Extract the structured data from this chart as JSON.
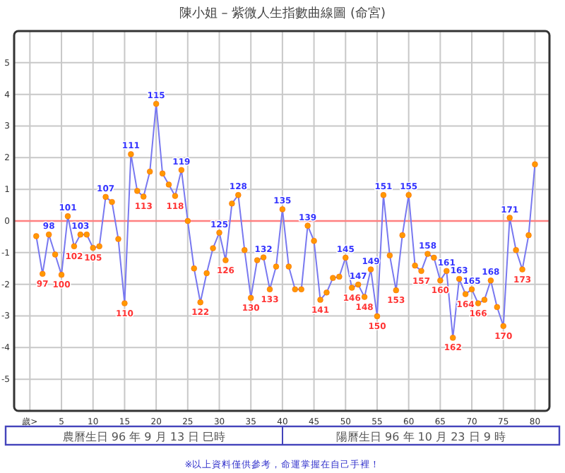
{
  "chart_data": {
    "type": "line",
    "title": "陳小姐 – 紫微人生指數曲線圖 (命宮)",
    "x": [
      1,
      2,
      3,
      4,
      5,
      6,
      7,
      8,
      9,
      10,
      11,
      12,
      13,
      14,
      15,
      16,
      17,
      18,
      19,
      20,
      21,
      22,
      23,
      24,
      25,
      26,
      27,
      28,
      29,
      30,
      31,
      32,
      33,
      34,
      35,
      36,
      37,
      38,
      39,
      40,
      41,
      42,
      43,
      44,
      45,
      46,
      47,
      48,
      49,
      50,
      51,
      52,
      53,
      54,
      55,
      56,
      57,
      58,
      59,
      60,
      61,
      62,
      63,
      64,
      65,
      66,
      67,
      68,
      69,
      70,
      71,
      72,
      73,
      74,
      75,
      76,
      77,
      78,
      79,
      80
    ],
    "series": [
      {
        "color": "#7878f0",
        "values": [
          -0.48,
          -1.67,
          -0.43,
          -1.06,
          -1.7,
          0.15,
          -0.8,
          -0.43,
          -0.43,
          -0.85,
          -0.8,
          0.76,
          0.6,
          -0.57,
          -2.6,
          2.11,
          0.95,
          0.77,
          1.56,
          3.7,
          1.5,
          1.15,
          0.79,
          1.61,
          0.0,
          -1.5,
          -2.57,
          -1.65,
          -0.86,
          -0.37,
          -1.24,
          0.55,
          0.82,
          -0.92,
          -2.43,
          -1.24,
          -1.15,
          -2.16,
          -1.44,
          0.37,
          -1.44,
          -2.16,
          -2.16,
          -0.15,
          -0.63,
          -2.49,
          -2.26,
          -1.8,
          -1.76,
          -1.16,
          -2.11,
          -2.01,
          -2.4,
          -1.53,
          -3.01,
          0.82,
          -1.09,
          -2.19,
          -0.45,
          0.82,
          -1.41,
          -1.58,
          -1.04,
          -1.16,
          -1.88,
          -1.58,
          -3.69,
          -1.83,
          -2.31,
          -2.16,
          -2.6,
          -2.49,
          -1.88,
          -2.72,
          -3.32,
          0.1,
          -0.92,
          -1.53,
          -0.45,
          1.79
        ]
      }
    ],
    "marker": "circle",
    "grid": true,
    "xlim": [
      -2.5,
      82.3
    ],
    "xticks": [
      {
        "value": 0,
        "label": "歲>"
      },
      5,
      10,
      15,
      20,
      25,
      30,
      35,
      40,
      45,
      50,
      55,
      60,
      65,
      70,
      75,
      80
    ],
    "ylim": [
      -6,
      6
    ],
    "yticks": [
      -5,
      -4,
      -3,
      -2,
      -1,
      0,
      1,
      2,
      3,
      4,
      5
    ],
    "ref_lines": [
      {
        "axis": "y",
        "value": 0,
        "color": "#ff8080"
      }
    ],
    "annotations": [
      "農曆生日 96 年 9 月 13 日 巳時",
      "陽曆生日 96 年 10 月 23 日 9 時",
      "※以上資料僅供參考，命運掌握在自己手裡！",
      {
        "text": "97",
        "x": 2,
        "y": -1.67
      },
      {
        "text": "98",
        "x": 3,
        "y": -0.43
      },
      {
        "text": "100",
        "x": 5,
        "y": -1.7
      },
      {
        "text": "101",
        "x": 6,
        "y": 0.15
      },
      {
        "text": "102",
        "x": 7,
        "y": -0.8
      },
      {
        "text": "103",
        "x": 8,
        "y": -0.43
      },
      {
        "text": "105",
        "x": 10,
        "y": -0.85
      },
      {
        "text": "107",
        "x": 12,
        "y": 0.76
      },
      {
        "text": "110",
        "x": 15,
        "y": -2.6
      },
      {
        "text": "111",
        "x": 16,
        "y": 2.11
      },
      {
        "text": "113",
        "x": 18,
        "y": 0.77
      },
      {
        "text": "115",
        "x": 20,
        "y": 3.7
      },
      {
        "text": "118",
        "x": 23,
        "y": 0.79
      },
      {
        "text": "119",
        "x": 24,
        "y": 1.61
      },
      {
        "text": "122",
        "x": 27,
        "y": -2.57
      },
      {
        "text": "125",
        "x": 30,
        "y": -0.37
      },
      {
        "text": "126",
        "x": 31,
        "y": -1.24
      },
      {
        "text": "128",
        "x": 33,
        "y": 0.82
      },
      {
        "text": "130",
        "x": 35,
        "y": -2.43
      },
      {
        "text": "132",
        "x": 37,
        "y": -1.15
      },
      {
        "text": "133",
        "x": 38,
        "y": -2.16
      },
      {
        "text": "135",
        "x": 40,
        "y": 0.37
      },
      {
        "text": "139",
        "x": 44,
        "y": -0.15
      },
      {
        "text": "141",
        "x": 46,
        "y": -2.49
      },
      {
        "text": "145",
        "x": 50,
        "y": -1.16
      },
      {
        "text": "146",
        "x": 51,
        "y": -2.11
      },
      {
        "text": "147",
        "x": 52,
        "y": -2.01
      },
      {
        "text": "148",
        "x": 53,
        "y": -2.4
      },
      {
        "text": "149",
        "x": 54,
        "y": -1.53
      },
      {
        "text": "150",
        "x": 55,
        "y": -3.01
      },
      {
        "text": "151",
        "x": 56,
        "y": 0.82
      },
      {
        "text": "153",
        "x": 58,
        "y": -2.19
      },
      {
        "text": "155",
        "x": 60,
        "y": 0.82
      },
      {
        "text": "157",
        "x": 62,
        "y": -1.58
      },
      {
        "text": "158",
        "x": 63,
        "y": -1.04
      },
      {
        "text": "160",
        "x": 65,
        "y": -1.88
      },
      {
        "text": "161",
        "x": 66,
        "y": -1.58
      },
      {
        "text": "162",
        "x": 67,
        "y": -3.69
      },
      {
        "text": "163",
        "x": 68,
        "y": -1.83
      },
      {
        "text": "164",
        "x": 69,
        "y": -2.31
      },
      {
        "text": "165",
        "x": 70,
        "y": -2.16
      },
      {
        "text": "166",
        "x": 71,
        "y": -2.6
      },
      {
        "text": "168",
        "x": 73,
        "y": -1.88
      },
      {
        "text": "170",
        "x": 75,
        "y": -3.32
      },
      {
        "text": "171",
        "x": 76,
        "y": 0.1
      },
      {
        "text": "173",
        "x": 78,
        "y": -1.53
      }
    ]
  }
}
